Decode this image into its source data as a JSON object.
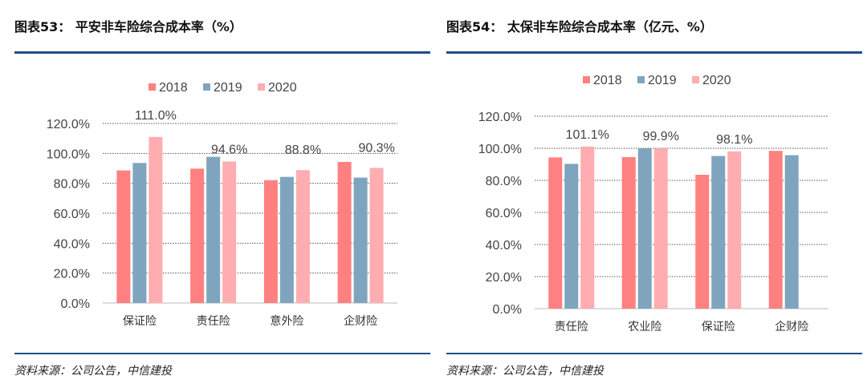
{
  "colors": {
    "2018": "#ff8080",
    "2019": "#7fa5be",
    "2020": "#ffadb0"
  },
  "chart_data": [
    {
      "type": "bar",
      "title": "图表53： 平安非车险综合成本率（%）",
      "source": "资料来源：公司公告，中信建投",
      "categories": [
        "保证险",
        "责任险",
        "意外险",
        "企财险"
      ],
      "series": [
        {
          "name": "2018",
          "values": [
            88.6,
            89.8,
            82.1,
            94.3
          ]
        },
        {
          "name": "2019",
          "values": [
            93.6,
            97.7,
            84.3,
            83.8
          ]
        },
        {
          "name": "2020",
          "values": [
            111.0,
            94.6,
            88.8,
            90.3
          ]
        }
      ],
      "data_labels": {
        "series": "2020",
        "labels": [
          "111.0%",
          "94.6%",
          "88.8%",
          "90.3%"
        ]
      },
      "yticks": [
        "0.0%",
        "20.0%",
        "40.0%",
        "60.0%",
        "80.0%",
        "100.0%",
        "120.0%"
      ],
      "ylim": [
        0,
        120
      ],
      "grid": true,
      "legend": "top"
    },
    {
      "type": "bar",
      "title": "图表54： 太保非车险综合成本率（亿元、%）",
      "source": "资料来源：公司公告，中信建投",
      "categories": [
        "责任险",
        "农业险",
        "保证险",
        "企财险"
      ],
      "series": [
        {
          "name": "2018",
          "values": [
            94.3,
            94.5,
            83.5,
            98.4
          ]
        },
        {
          "name": "2019",
          "values": [
            90.3,
            100.0,
            95.2,
            95.7
          ]
        },
        {
          "name": "2020",
          "values": [
            101.1,
            99.9,
            98.1,
            null
          ]
        }
      ],
      "data_labels": {
        "series": "2020",
        "labels": [
          "101.1%",
          "99.9%",
          "98.1%",
          null
        ]
      },
      "yticks": [
        "0.0%",
        "20.0%",
        "40.0%",
        "60.0%",
        "80.0%",
        "100.0%",
        "120.0%"
      ],
      "ylim": [
        0,
        120
      ],
      "grid": true,
      "legend": "top"
    }
  ]
}
